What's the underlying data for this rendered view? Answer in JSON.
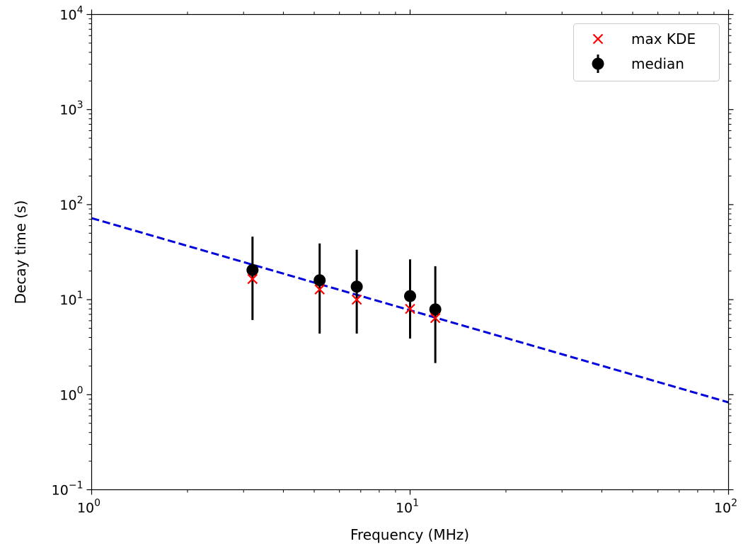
{
  "chart_data": {
    "type": "scatter",
    "xscale": "log",
    "yscale": "log",
    "xlim": [
      1,
      100
    ],
    "ylim": [
      0.1,
      10000
    ],
    "xlabel": "Frequency (MHz)",
    "ylabel": "Decay time (s)",
    "grid": false,
    "legend_position": "top-right",
    "x_ticks": [
      {
        "value": 1,
        "base": "10",
        "exp": "0"
      },
      {
        "value": 10,
        "base": "10",
        "exp": "1"
      },
      {
        "value": 100,
        "base": "10",
        "exp": "2"
      }
    ],
    "y_ticks": [
      {
        "value": 0.1,
        "base": "10",
        "exp": "−1"
      },
      {
        "value": 1,
        "base": "10",
        "exp": "0"
      },
      {
        "value": 10,
        "base": "10",
        "exp": "1"
      },
      {
        "value": 100,
        "base": "10",
        "exp": "2"
      },
      {
        "value": 1000,
        "base": "10",
        "exp": "3"
      },
      {
        "value": 10000,
        "base": "10",
        "exp": "4"
      }
    ],
    "series": [
      {
        "name": "max KDE",
        "marker": "x",
        "color": "#ff0000",
        "points": [
          {
            "x": 3.2,
            "y": 16.5
          },
          {
            "x": 5.2,
            "y": 12.8
          },
          {
            "x": 6.8,
            "y": 10.0
          },
          {
            "x": 10.0,
            "y": 8.0
          },
          {
            "x": 12.0,
            "y": 6.4
          }
        ]
      },
      {
        "name": "median",
        "marker": "o",
        "color": "#000000",
        "points": [
          {
            "x": 3.2,
            "y": 20.5,
            "ylow": 6.1,
            "yhigh": 46
          },
          {
            "x": 5.2,
            "y": 16.0,
            "ylow": 4.4,
            "yhigh": 39
          },
          {
            "x": 6.8,
            "y": 13.7,
            "ylow": 4.4,
            "yhigh": 33.5
          },
          {
            "x": 10.0,
            "y": 10.9,
            "ylow": 3.9,
            "yhigh": 26.5
          },
          {
            "x": 12.0,
            "y": 7.9,
            "ylow": 2.15,
            "yhigh": 22.5
          }
        ]
      }
    ],
    "fit_line": {
      "style": "dashed",
      "color": "#0000dd",
      "points": [
        {
          "x": 1,
          "y": 72
        },
        {
          "x": 100,
          "y": 0.83
        }
      ]
    }
  }
}
